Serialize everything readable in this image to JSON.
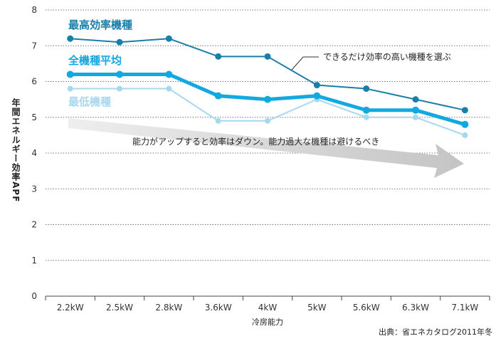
{
  "chart_data": {
    "type": "line",
    "categories": [
      "2.2kW",
      "2.5kW",
      "2.8kW",
      "3.6kW",
      "4kW",
      "5kW",
      "5.6kW",
      "6.3kW",
      "7.1kW"
    ],
    "series": [
      {
        "name": "最高効率機種",
        "values": [
          7.2,
          7.1,
          7.2,
          6.7,
          6.7,
          5.9,
          5.8,
          5.5,
          5.2
        ],
        "color": "#1a7fa8"
      },
      {
        "name": "全機種平均",
        "values": [
          6.2,
          6.2,
          6.2,
          5.6,
          5.5,
          5.6,
          5.2,
          5.2,
          4.8
        ],
        "color": "#12a8e0"
      },
      {
        "name": "最低機種",
        "values": [
          5.8,
          5.8,
          5.8,
          4.9,
          4.9,
          5.5,
          5.0,
          5.0,
          4.5
        ],
        "color": "#a7d8f0"
      }
    ],
    "yticks": [
      "0",
      "1",
      "2",
      "3",
      "4",
      "5",
      "6",
      "7",
      "8"
    ],
    "ylim": [
      0,
      8
    ],
    "ylabel": "年間エネルギー効率APF",
    "xlabel": "冷房能力",
    "annotations": {
      "callout": "できるだけ効率の高い機種を選ぶ",
      "trend": "能力がアップすると効率はダウン。能力過大な機種は避けるべき"
    },
    "source": "出典：省エネカタログ2011年冬"
  }
}
